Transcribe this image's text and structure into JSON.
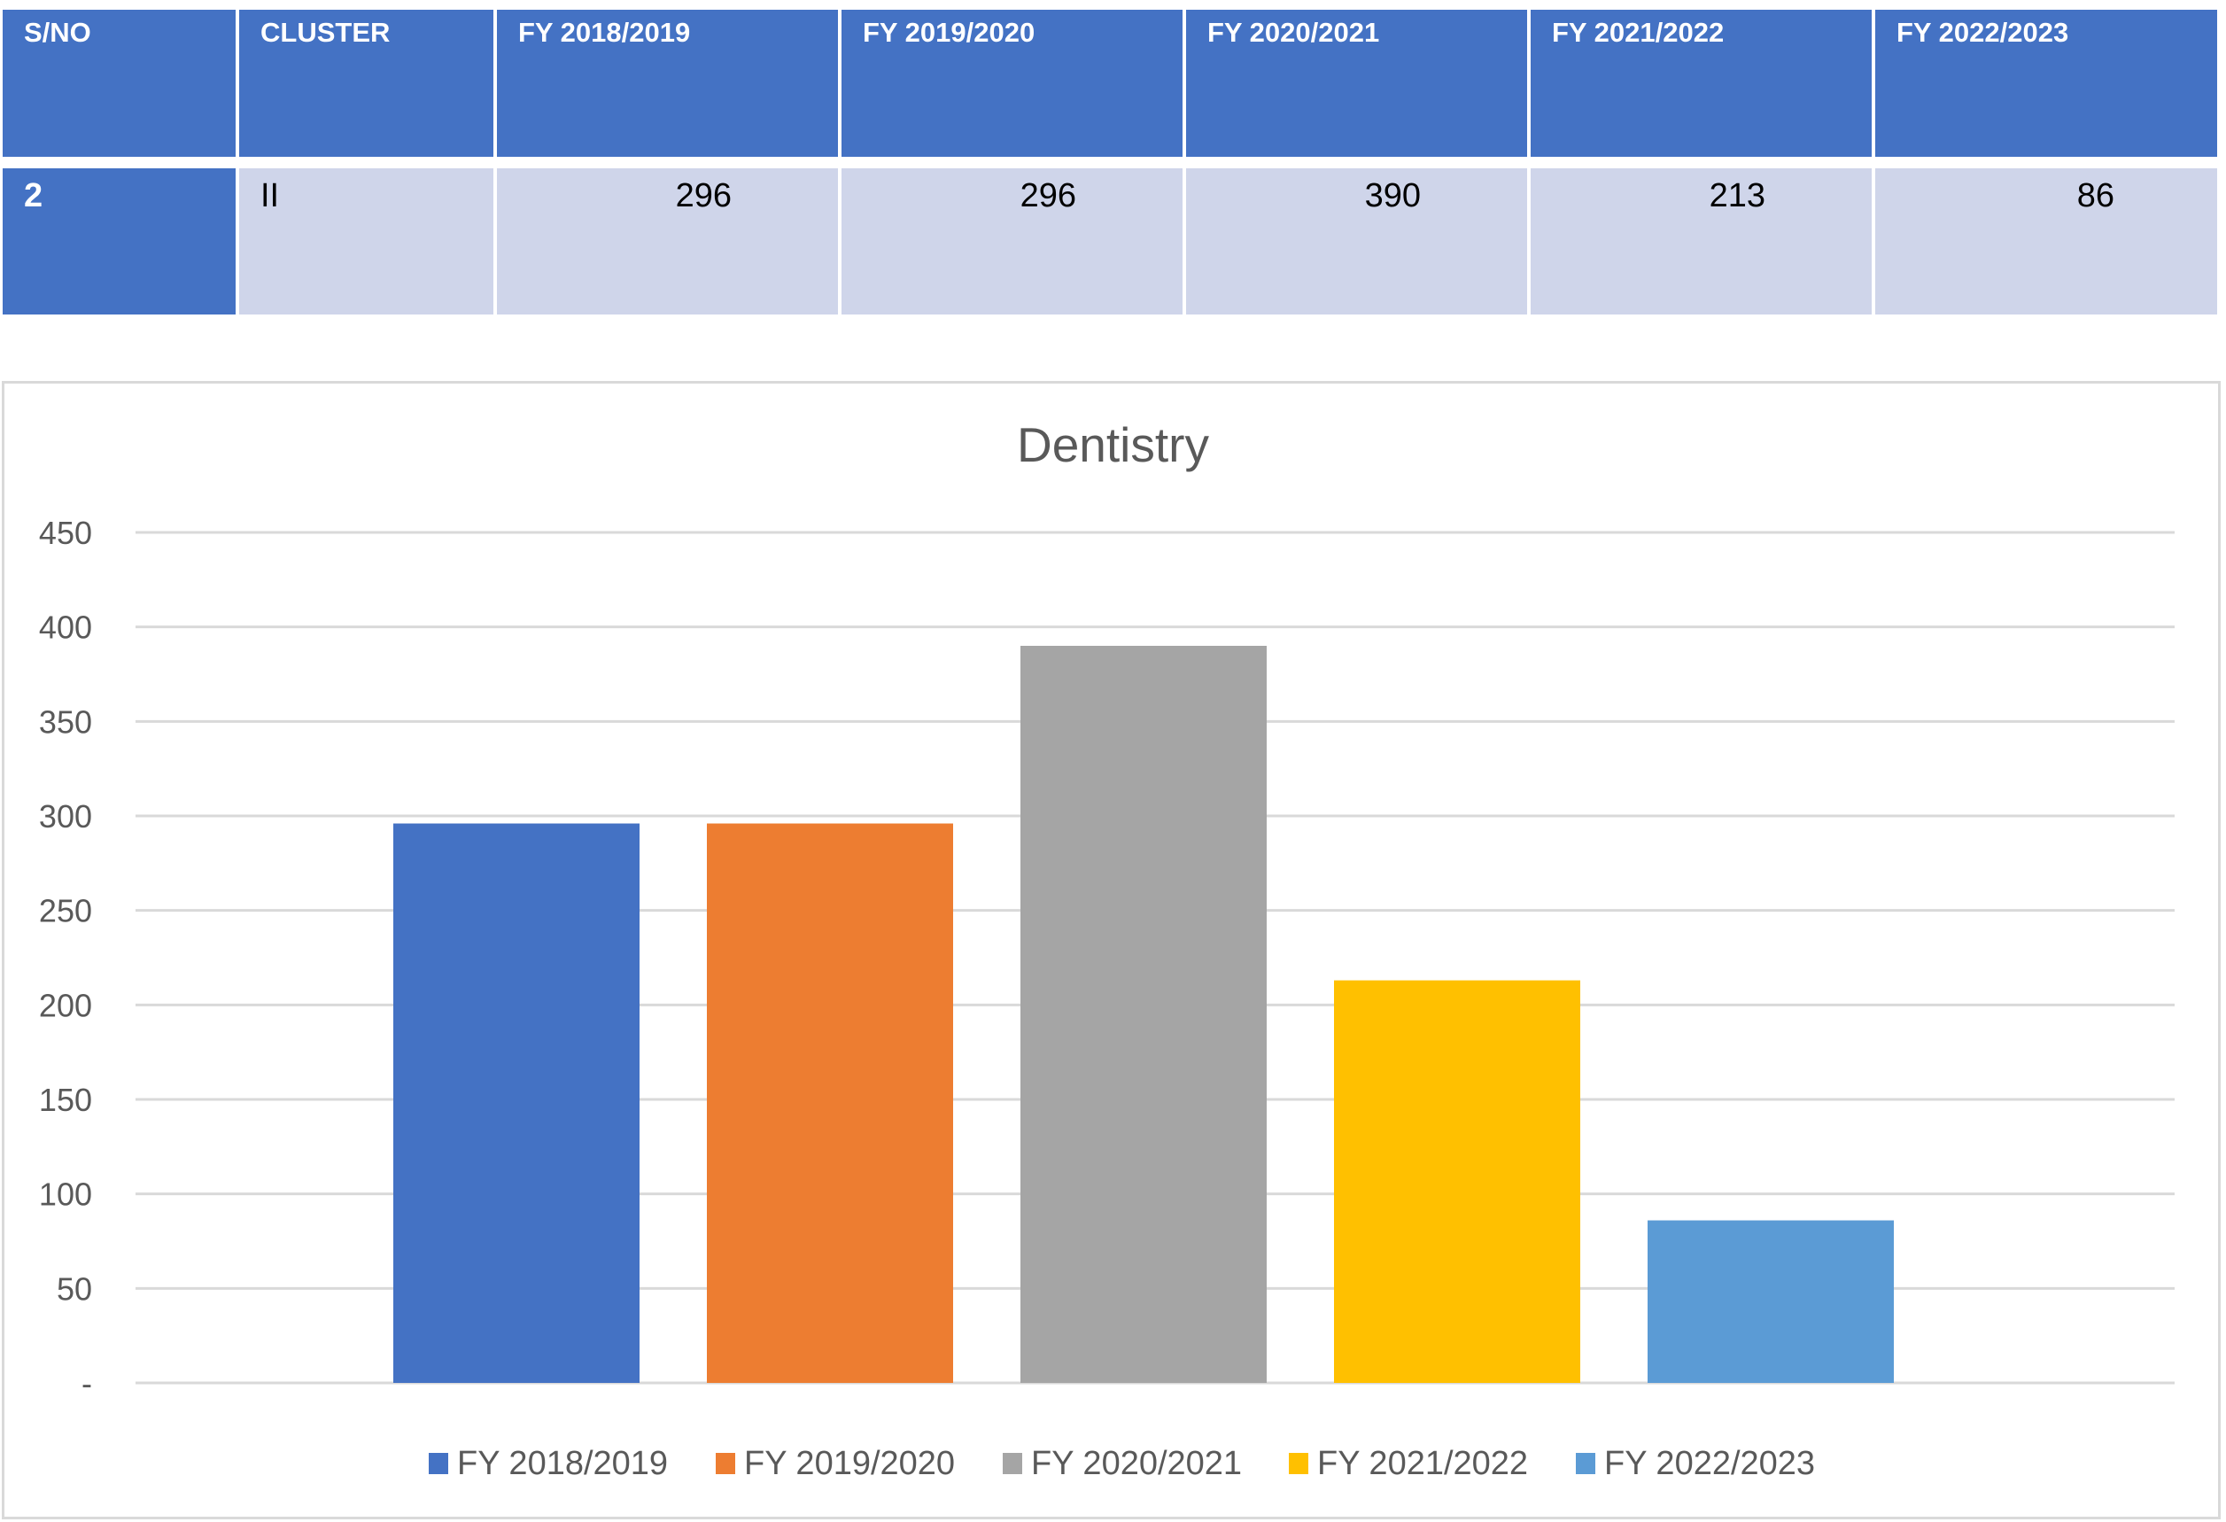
{
  "table": {
    "headers": [
      "S/NO",
      "CLUSTER",
      "FY 2018/2019",
      "FY 2019/2020",
      "FY 2020/2021",
      "FY 2021/2022",
      "FY 2022/2023"
    ],
    "rows": [
      {
        "sno": "2",
        "cluster": "II",
        "values": [
          "296",
          "296",
          "390",
          "213",
          "86"
        ]
      }
    ],
    "colors": {
      "header_bg": "#4472c4",
      "header_text": "#ffffff",
      "row_bg": "#cfd5ea"
    }
  },
  "chart_data": {
    "type": "bar",
    "title": "Dentistry",
    "xlabel": "",
    "ylabel": "",
    "categories": [
      ""
    ],
    "series": [
      {
        "name": "FY 2018/2019",
        "values": [
          296
        ],
        "color": "#4472c4"
      },
      {
        "name": "FY 2019/2020",
        "values": [
          296
        ],
        "color": "#ed7d31"
      },
      {
        "name": "FY 2020/2021",
        "values": [
          390
        ],
        "color": "#a5a5a5"
      },
      {
        "name": "FY 2021/2022",
        "values": [
          213
        ],
        "color": "#ffc000"
      },
      {
        "name": "FY 2022/2023",
        "values": [
          86
        ],
        "color": "#5b9bd5"
      }
    ],
    "ylim": [
      0,
      450
    ],
    "yticks": [
      0,
      50,
      100,
      150,
      200,
      250,
      300,
      350,
      400,
      450
    ],
    "ytick_labels": [
      "-",
      "50",
      "100",
      "150",
      "200",
      "250",
      "300",
      "350",
      "400",
      "450"
    ],
    "grid": true,
    "legend_position": "bottom"
  }
}
